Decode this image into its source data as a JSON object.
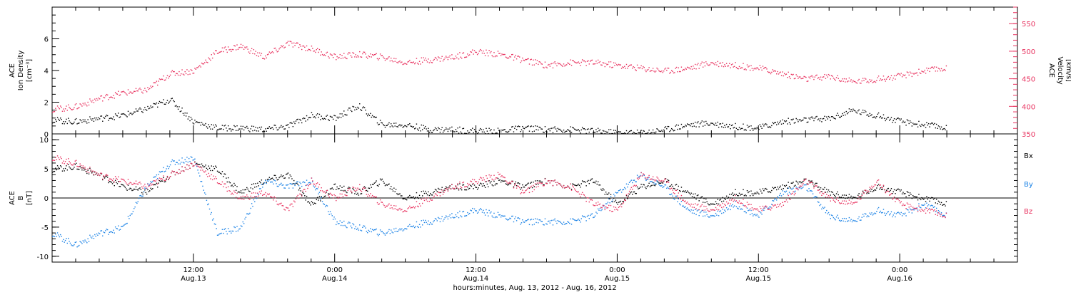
{
  "chart_data": [
    {
      "type": "scatter",
      "panel": "top",
      "ylabel_left": [
        "ACE",
        "Ion Density",
        "[cm⁻³]"
      ],
      "ylabel_right": [
        "ACE",
        "Velocity",
        "[km/s]"
      ],
      "ylim_left": [
        0,
        8
      ],
      "yticks_left": [
        "0",
        "2",
        "4",
        "6"
      ],
      "ylim_right": [
        350,
        580
      ],
      "yticks_right": [
        "350",
        "400",
        "450",
        "500",
        "550"
      ],
      "series": [
        {
          "axis": "left",
          "color": "#000000",
          "x_hours": [
            0,
            2,
            4,
            6,
            8,
            10,
            12,
            14,
            16,
            18,
            20,
            22,
            24,
            26,
            28,
            30,
            32,
            34,
            36,
            38,
            40,
            42,
            44,
            46,
            48,
            50,
            52,
            54,
            56,
            58,
            60,
            62,
            64,
            66,
            68,
            70,
            72,
            74,
            76
          ],
          "values": [
            0.9,
            0.8,
            1.0,
            1.2,
            1.6,
            2.2,
            0.8,
            0.4,
            0.4,
            0.3,
            0.5,
            1.2,
            1.0,
            1.8,
            0.6,
            0.6,
            0.3,
            0.3,
            0.2,
            0.2,
            0.4,
            0.3,
            0.3,
            0.2,
            0.1,
            0.1,
            0.3,
            0.6,
            0.7,
            0.5,
            0.4,
            0.8,
            0.9,
            1.0,
            1.5,
            1.2,
            0.8,
            0.6,
            0.4
          ]
        },
        {
          "axis": "right",
          "color": "#e8325f",
          "x_hours": [
            0,
            2,
            4,
            6,
            8,
            10,
            12,
            14,
            16,
            18,
            20,
            22,
            24,
            26,
            28,
            30,
            32,
            34,
            36,
            38,
            40,
            42,
            44,
            46,
            48,
            50,
            52,
            54,
            56,
            58,
            60,
            62,
            64,
            66,
            68,
            70,
            72,
            74,
            76
          ],
          "values": [
            395,
            400,
            415,
            425,
            430,
            460,
            465,
            500,
            510,
            490,
            515,
            505,
            490,
            495,
            490,
            480,
            485,
            490,
            500,
            495,
            485,
            475,
            480,
            480,
            475,
            470,
            465,
            470,
            480,
            475,
            470,
            460,
            450,
            455,
            445,
            450,
            455,
            465,
            470
          ]
        }
      ]
    },
    {
      "type": "scatter",
      "panel": "bottom",
      "ylabel_left": [
        "ACE",
        "B",
        "[nT]"
      ],
      "ylim": [
        -11,
        11
      ],
      "yticks": [
        "-10",
        "-5",
        "0",
        "5",
        "10"
      ],
      "legend": [
        "Bx",
        "By",
        "Bz"
      ],
      "legend_placement": "right",
      "series": [
        {
          "name": "Bx",
          "color": "#000000",
          "x_hours": [
            0,
            2,
            4,
            6,
            8,
            10,
            12,
            14,
            16,
            18,
            20,
            22,
            24,
            26,
            28,
            30,
            32,
            34,
            36,
            38,
            40,
            42,
            44,
            46,
            48,
            50,
            52,
            54,
            56,
            58,
            60,
            62,
            64,
            66,
            68,
            70,
            72,
            74,
            76
          ],
          "values": [
            5,
            5.5,
            4,
            2,
            1,
            4,
            6,
            5,
            1,
            3,
            4,
            -1,
            2,
            1,
            3,
            0,
            1,
            2,
            2,
            3,
            2,
            3,
            2,
            3,
            -1,
            2,
            3,
            1,
            -1,
            1,
            1,
            2,
            3,
            1,
            0,
            2,
            1,
            0,
            -1
          ]
        },
        {
          "name": "By",
          "color": "#1a82e6",
          "x_hours": [
            0,
            2,
            4,
            6,
            8,
            10,
            12,
            14,
            16,
            18,
            20,
            22,
            24,
            26,
            28,
            30,
            32,
            34,
            36,
            38,
            40,
            42,
            44,
            46,
            48,
            50,
            52,
            54,
            56,
            58,
            60,
            62,
            64,
            66,
            68,
            70,
            72,
            74,
            76
          ],
          "values": [
            -6,
            -8,
            -6,
            -5,
            2,
            6,
            7,
            -6,
            -5,
            3,
            2,
            3,
            -4,
            -5,
            -6,
            -5,
            -4,
            -3,
            -2,
            -3,
            -4,
            -4,
            -4,
            -3,
            1,
            4,
            2,
            -2,
            -3,
            -1,
            -3,
            1,
            2,
            -3,
            -4,
            -2,
            -3,
            -1,
            -3
          ]
        },
        {
          "name": "Bz",
          "color": "#e8325f",
          "x_hours": [
            0,
            2,
            4,
            6,
            8,
            10,
            12,
            14,
            16,
            18,
            20,
            22,
            24,
            26,
            28,
            30,
            32,
            34,
            36,
            38,
            40,
            42,
            44,
            46,
            48,
            50,
            52,
            54,
            56,
            58,
            60,
            62,
            64,
            66,
            68,
            70,
            72,
            74,
            76
          ],
          "values": [
            7,
            6,
            4,
            3,
            2,
            4,
            6,
            3,
            0,
            1,
            -2,
            3,
            0,
            2,
            -1,
            -2,
            0,
            2,
            3,
            4,
            1,
            3,
            2,
            -1,
            -2,
            4,
            3,
            -1,
            -2,
            0,
            -2,
            -1,
            3,
            0,
            -1,
            3,
            -1,
            -2,
            -3
          ]
        }
      ]
    }
  ],
  "xaxis": {
    "xlim_hours": [
      0,
      82
    ],
    "ticks": [
      {
        "hour": 12,
        "time": "12:00",
        "day": "Aug.13"
      },
      {
        "hour": 24,
        "time": "0:00",
        "day": "Aug.14"
      },
      {
        "hour": 36,
        "time": "12:00",
        "day": "Aug.14"
      },
      {
        "hour": 48,
        "time": "0:00",
        "day": "Aug.15"
      },
      {
        "hour": 60,
        "time": "12:00",
        "day": "Aug.15"
      },
      {
        "hour": 72,
        "time": "0:00",
        "day": "Aug.16"
      }
    ],
    "xlabel": "hours:minutes, Aug. 13, 2012 - Aug. 16, 2012"
  }
}
